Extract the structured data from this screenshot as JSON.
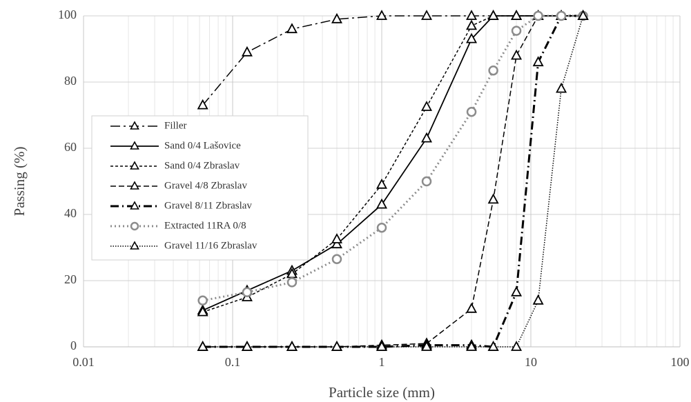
{
  "chart_data": {
    "type": "line",
    "x_label": "Particle size (mm)",
    "y_label": "Passing (%)",
    "x": [
      0.063,
      0.125,
      0.25,
      0.5,
      1,
      2,
      4,
      5.6,
      8,
      11.2,
      16,
      22.4
    ],
    "x_log": true,
    "xlim": [
      0.01,
      100
    ],
    "xticks": [
      0.01,
      0.1,
      1,
      10,
      100
    ],
    "ylim": [
      0,
      100
    ],
    "yticks": [
      0,
      20,
      40,
      60,
      80,
      100
    ],
    "grid": true,
    "minor_grid": true,
    "legend": "left",
    "series": [
      {
        "name": "Filler",
        "color": "#000000",
        "marker": "triangle",
        "dash": "14,5,3,5",
        "width": 1.5,
        "values": [
          73,
          89,
          96,
          99,
          100,
          100,
          100,
          100,
          100,
          100,
          100,
          100
        ]
      },
      {
        "name": "Sand 0/4 Lašovice",
        "color": "#000000",
        "marker": "triangle",
        "dash": "none",
        "width": 1.8,
        "values": [
          11,
          17,
          23,
          31,
          43,
          63,
          93,
          100,
          100,
          100,
          100,
          100
        ]
      },
      {
        "name": "Sand 0/4 Zbraslav",
        "color": "#000000",
        "marker": "triangle",
        "dash": "4,3",
        "width": 1.5,
        "values": [
          10.5,
          15,
          22,
          32.5,
          49,
          72.5,
          97,
          100,
          100,
          100,
          100,
          100
        ]
      },
      {
        "name": "Gravel 4/8 Zbraslav",
        "color": "#000000",
        "marker": "triangle",
        "dash": "8,4",
        "width": 1.5,
        "values": [
          0,
          0,
          0,
          0,
          0.5,
          1,
          11.5,
          44.5,
          88,
          100,
          100,
          100
        ]
      },
      {
        "name": "Gravel 8/11 Zbraslav",
        "color": "#000000",
        "marker": "triangle",
        "dash": "12,5,2,5",
        "width": 3,
        "values": [
          0,
          0,
          0,
          0,
          0,
          0.5,
          0.5,
          0,
          16.5,
          86,
          100,
          100
        ]
      },
      {
        "name": "Extracted 11RA 0/8",
        "color": "#8c8c8c",
        "marker": "circle",
        "dash": "2,4",
        "width": 3,
        "values": [
          14,
          16.5,
          19.5,
          26.5,
          36,
          50,
          71,
          83.5,
          95.5,
          100,
          100,
          100
        ]
      },
      {
        "name": "Gravel 11/16 Zbraslav",
        "color": "#000000",
        "marker": "triangle",
        "dash": "1.5,2",
        "width": 1.5,
        "values": [
          0,
          0,
          0,
          0,
          0,
          0,
          0,
          0,
          0,
          14,
          78,
          100
        ]
      }
    ]
  }
}
